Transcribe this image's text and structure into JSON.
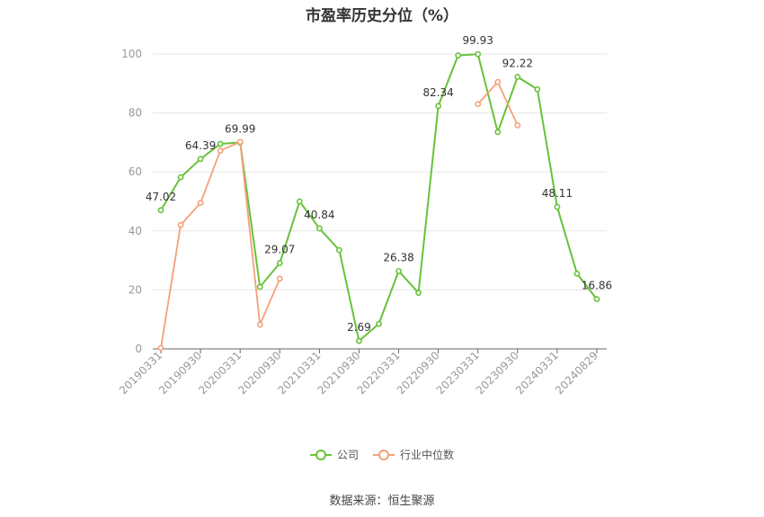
{
  "chart_data": {
    "type": "line",
    "title": "市盈率历史分位（%）",
    "x": [
      "20190331",
      "20190630",
      "20190930",
      "20191231",
      "20200331",
      "20200630",
      "20200930",
      "20201231",
      "20210331",
      "20210630",
      "20210930",
      "20211231",
      "20220331",
      "20220630",
      "20220930",
      "20221231",
      "20230331",
      "20230630",
      "20230930",
      "20231231",
      "20240331",
      "20240630",
      "20240829"
    ],
    "x_tick_labels": [
      "20190331",
      "20190930",
      "20200331",
      "20200930",
      "20210331",
      "20210930",
      "20220331",
      "20220930",
      "20230331",
      "20230930",
      "20240331",
      "20240829"
    ],
    "ylim": [
      0,
      100
    ],
    "y_ticks": [
      0,
      20,
      40,
      60,
      80,
      100
    ],
    "grid": true,
    "legend_position": "bottom",
    "series": [
      {
        "name": "公司",
        "color": "#67c23a",
        "values": [
          47.02,
          58.2,
          64.39,
          69.5,
          69.99,
          21.0,
          29.07,
          50.0,
          40.84,
          33.5,
          2.69,
          8.5,
          26.38,
          19.0,
          82.34,
          99.5,
          99.93,
          73.5,
          92.22,
          88.0,
          48.11,
          25.5,
          16.86
        ],
        "labels": {
          "0": "47.02",
          "2": "64.39",
          "4": "69.99",
          "6": "29.07",
          "8": "40.84",
          "10": "2.69",
          "12": "26.38",
          "14": "82.34",
          "16": "99.93",
          "18": "92.22",
          "20": "48.11",
          "22": "16.86"
        }
      },
      {
        "name": "行业中位数",
        "color": "#f4a07a",
        "values": [
          0.3,
          42.0,
          49.5,
          67.2,
          70.2,
          8.2,
          23.8,
          null,
          null,
          null,
          null,
          null,
          null,
          null,
          null,
          null,
          83.0,
          90.5,
          75.8,
          null,
          null,
          null,
          null
        ]
      }
    ]
  },
  "footer": {
    "source": "数据来源：恒生聚源"
  }
}
